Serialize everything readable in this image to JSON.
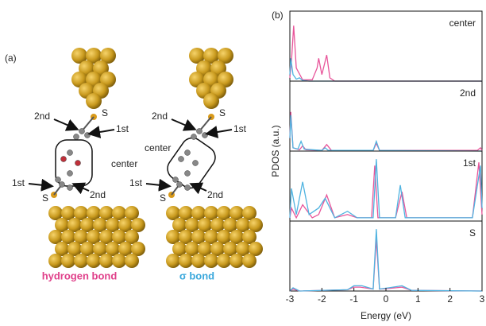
{
  "panel_a": {
    "label": "(a)",
    "left": {
      "top_s": "S",
      "top_2nd": "2nd",
      "top_1st": "1st",
      "center": "center",
      "bottom_1st": "1st",
      "bottom_s": "S",
      "bottom_2nd": "2nd",
      "caption": "hydrogen bond"
    },
    "right": {
      "top_s": "S",
      "top_2nd": "2nd",
      "top_1st": "1st",
      "center": "center",
      "bottom_1st": "1st",
      "bottom_s": "S",
      "bottom_2nd": "2nd",
      "caption": "σ bond"
    }
  },
  "chart_data": {
    "type": "line",
    "panel_label": "(b)",
    "xlabel": "Energy (eV)",
    "ylabel": "PDOS (a.u.)",
    "xlim": [
      -3,
      3
    ],
    "xticks": [
      -3,
      -2,
      -1,
      0,
      1,
      2,
      3
    ],
    "panels": [
      {
        "label": "center",
        "ylim": [
          0,
          1
        ],
        "series": [
          {
            "color": "#e8559a",
            "x": [
              -3,
              -2.95,
              -2.88,
              -2.8,
              -2.6,
              -2.3,
              -2.15,
              -2.1,
              -2.0,
              -1.9,
              -1.85,
              -1.75,
              -1.6,
              3
            ],
            "values": [
              0.05,
              0.3,
              0.85,
              0.2,
              0.02,
              0.02,
              0.2,
              0.35,
              0.1,
              0.3,
              0.4,
              0.05,
              0,
              0
            ]
          },
          {
            "color": "#4fb3e0",
            "x": [
              -3,
              -2.97,
              -2.9,
              -2.8,
              -2.7,
              -2.6,
              -2.4,
              3
            ],
            "values": [
              0.1,
              0.35,
              0.1,
              0.03,
              0.05,
              0.01,
              0,
              0
            ]
          }
        ]
      },
      {
        "label": "2nd",
        "ylim": [
          0,
          1
        ],
        "series": [
          {
            "color": "#e8559a",
            "x": [
              -3,
              -2.97,
              -2.9,
              -2.7,
              -2.6,
              -2.5,
              -2.0,
              -1.85,
              -1.7,
              -0.4,
              -0.3,
              -0.2,
              2.85,
              2.95,
              3
            ],
            "values": [
              0.2,
              0.6,
              0.05,
              0.02,
              0.08,
              0.02,
              0.01,
              0.1,
              0.01,
              0.01,
              0.12,
              0.01,
              0.01,
              0.05,
              0.01
            ]
          },
          {
            "color": "#4fb3e0",
            "x": [
              -3,
              -2.97,
              -2.9,
              -2.75,
              -2.65,
              -2.55,
              -2.0,
              -1.9,
              -1.8,
              -0.4,
              -0.3,
              -0.2,
              3
            ],
            "values": [
              0.2,
              0.55,
              0.05,
              0.03,
              0.15,
              0.03,
              0.01,
              0.05,
              0.01,
              0.01,
              0.15,
              0.01,
              0
            ]
          }
        ]
      },
      {
        "label": "1st",
        "ylim": [
          0,
          1
        ],
        "series": [
          {
            "color": "#e8559a",
            "x": [
              -3,
              -2.95,
              -2.8,
              -2.6,
              -2.3,
              -2.1,
              -1.85,
              -1.6,
              -1.2,
              -0.9,
              -0.45,
              -0.35,
              -0.25,
              0.3,
              0.5,
              0.65,
              2.7,
              2.9,
              3
            ],
            "values": [
              0.05,
              0.2,
              0.05,
              0.25,
              0.05,
              0.1,
              0.4,
              0.05,
              0.1,
              0.05,
              0.05,
              0.85,
              0.05,
              0.05,
              0.45,
              0.05,
              0.05,
              0.9,
              0.1
            ]
          },
          {
            "color": "#4fb3e0",
            "x": [
              -3,
              -2.95,
              -2.8,
              -2.6,
              -2.4,
              -2.1,
              -1.9,
              -1.6,
              -1.2,
              -0.9,
              -0.4,
              -0.3,
              -0.2,
              0.3,
              0.45,
              0.6,
              2.7,
              2.95,
              3
            ],
            "values": [
              0.05,
              0.5,
              0.1,
              0.6,
              0.1,
              0.2,
              0.35,
              0.05,
              0.15,
              0.05,
              0.05,
              0.95,
              0.05,
              0.05,
              0.55,
              0.05,
              0.05,
              0.85,
              0.2
            ]
          }
        ]
      },
      {
        "label": "S",
        "ylim": [
          0,
          1
        ],
        "series": [
          {
            "color": "#e8559a",
            "x": [
              -3,
              -2.9,
              -2.7,
              -1.2,
              -1.0,
              -0.8,
              -0.4,
              -0.3,
              -0.2,
              0.1,
              0.5,
              0.8,
              3
            ],
            "values": [
              0,
              0.03,
              0,
              0.02,
              0.06,
              0.06,
              0.03,
              0.8,
              0.03,
              0.04,
              0.06,
              0.01,
              0
            ]
          },
          {
            "color": "#4fb3e0",
            "x": [
              -3,
              -2.9,
              -2.7,
              -1.2,
              -1.0,
              -0.75,
              -0.4,
              -0.3,
              -0.2,
              0.1,
              0.5,
              0.8,
              3
            ],
            "values": [
              0,
              0.05,
              0,
              0.02,
              0.08,
              0.08,
              0.03,
              0.95,
              0.03,
              0.05,
              0.08,
              0.01,
              0
            ]
          }
        ]
      }
    ]
  }
}
